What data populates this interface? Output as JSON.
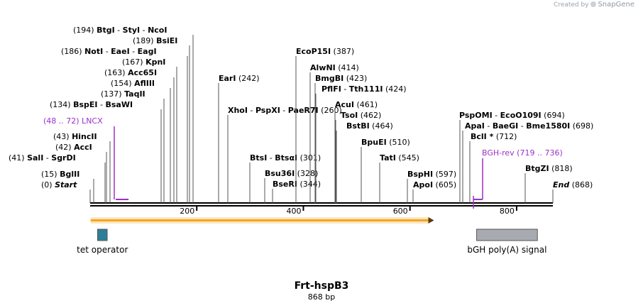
{
  "brand": {
    "created_by": "Created by",
    "name": "SnapGene"
  },
  "construct": {
    "name": "Frt-hspB3",
    "length_label": "868 bp"
  },
  "chart_data": {
    "type": "plasmid-map",
    "total_bp": 868,
    "axis_ticks": [
      {
        "label": "200",
        "pos": 200
      },
      {
        "label": "400",
        "pos": 400
      },
      {
        "label": "600",
        "pos": 600
      },
      {
        "label": "800",
        "pos": 800
      }
    ],
    "sites": [
      {
        "pos": 194,
        "pos_label": "(194)",
        "names": [
          "BtgI",
          "StyI",
          "NcoI"
        ]
      },
      {
        "pos": 189,
        "pos_label": "(189)",
        "names": [
          "BsiEI"
        ]
      },
      {
        "pos": 186,
        "pos_label": "(186)",
        "names": [
          "NotI",
          "EaeI",
          "EagI"
        ]
      },
      {
        "pos": 167,
        "pos_label": "(167)",
        "names": [
          "KpnI"
        ]
      },
      {
        "pos": 163,
        "pos_label": "(163)",
        "names": [
          "Acc65I"
        ]
      },
      {
        "pos": 154,
        "pos_label": "(154)",
        "names": [
          "AflIII"
        ]
      },
      {
        "pos": 137,
        "pos_label": "(137)",
        "names": [
          "TaqII"
        ]
      },
      {
        "pos": 134,
        "pos_label": "(134)",
        "names": [
          "BspEI",
          "BsaWI"
        ]
      },
      {
        "pos": 43,
        "pos_label": "(43)",
        "names": [
          "HincII"
        ]
      },
      {
        "pos": 42,
        "pos_label": "(42)",
        "names": [
          "AccI"
        ]
      },
      {
        "pos": 41,
        "pos_label": "(41)",
        "names": [
          "SalI",
          "SgrDI"
        ]
      },
      {
        "pos": 15,
        "pos_label": "(15)",
        "names": [
          "BglII"
        ]
      },
      {
        "pos": 0,
        "pos_label": "(0)",
        "names": [
          "Start"
        ]
      },
      {
        "pos": 242,
        "pos_label": "(242)",
        "names": [
          "EarI"
        ]
      },
      {
        "pos": 260,
        "pos_label": "(260)",
        "names": [
          "XhoI",
          "PspXI",
          "PaeR7I"
        ]
      },
      {
        "pos": 301,
        "pos_label": "(301)",
        "names": [
          "BtsI",
          "BtsαI"
        ]
      },
      {
        "pos": 328,
        "pos_label": "(328)",
        "names": [
          "Bsu36I"
        ]
      },
      {
        "pos": 344,
        "pos_label": "(344)",
        "names": [
          "BseRI"
        ]
      },
      {
        "pos": 387,
        "pos_label": "(387)",
        "names": [
          "EcoP15I"
        ]
      },
      {
        "pos": 414,
        "pos_label": "(414)",
        "names": [
          "AlwNI"
        ]
      },
      {
        "pos": 423,
        "pos_label": "(423)",
        "names": [
          "BmgBI"
        ]
      },
      {
        "pos": 424,
        "pos_label": "(424)",
        "names": [
          "PflFI",
          "Tth111I"
        ]
      },
      {
        "pos": 461,
        "pos_label": "(461)",
        "names": [
          "AcuI"
        ]
      },
      {
        "pos": 462,
        "pos_label": "(462)",
        "names": [
          "TsoI"
        ]
      },
      {
        "pos": 464,
        "pos_label": "(464)",
        "names": [
          "BstBI"
        ]
      },
      {
        "pos": 510,
        "pos_label": "(510)",
        "names": [
          "BpuEI"
        ]
      },
      {
        "pos": 545,
        "pos_label": "(545)",
        "names": [
          "TatI"
        ]
      },
      {
        "pos": 597,
        "pos_label": "(597)",
        "names": [
          "BspHI"
        ]
      },
      {
        "pos": 605,
        "pos_label": "(605)",
        "names": [
          "ApoI"
        ]
      },
      {
        "pos": 694,
        "pos_label": "(694)",
        "names": [
          "PspOMI",
          "EcoO109I"
        ]
      },
      {
        "pos": 698,
        "pos_label": "(698)",
        "names": [
          "ApaI",
          "BaeGI",
          "Bme1580I"
        ]
      },
      {
        "pos": 712,
        "pos_label": "(712)",
        "names": [
          "BclI *"
        ]
      },
      {
        "pos": 818,
        "pos_label": "(818)",
        "names": [
          "BtgZI"
        ]
      },
      {
        "pos": 868,
        "pos_label": "(868)",
        "names": [
          "End"
        ]
      }
    ],
    "primers": [
      {
        "name": "LNCX",
        "range_label": "(48 .. 72)",
        "start": 48,
        "end": 72,
        "color": "#9b30c8"
      },
      {
        "name": "BGH-rev",
        "range_label": "(719 .. 736)",
        "start": 719,
        "end": 736,
        "color": "#9b30c8"
      }
    ],
    "features": [
      {
        "name": "tet operator",
        "start": 14,
        "end": 32,
        "color": "#2d7f97",
        "kind": "box"
      },
      {
        "name": "bGH poly(A) signal",
        "start": 725,
        "end": 839,
        "color": "#a7abb1",
        "kind": "box"
      },
      {
        "name": "",
        "start": 1,
        "end": 645,
        "color": "#f5a623",
        "kind": "arrow"
      }
    ]
  }
}
